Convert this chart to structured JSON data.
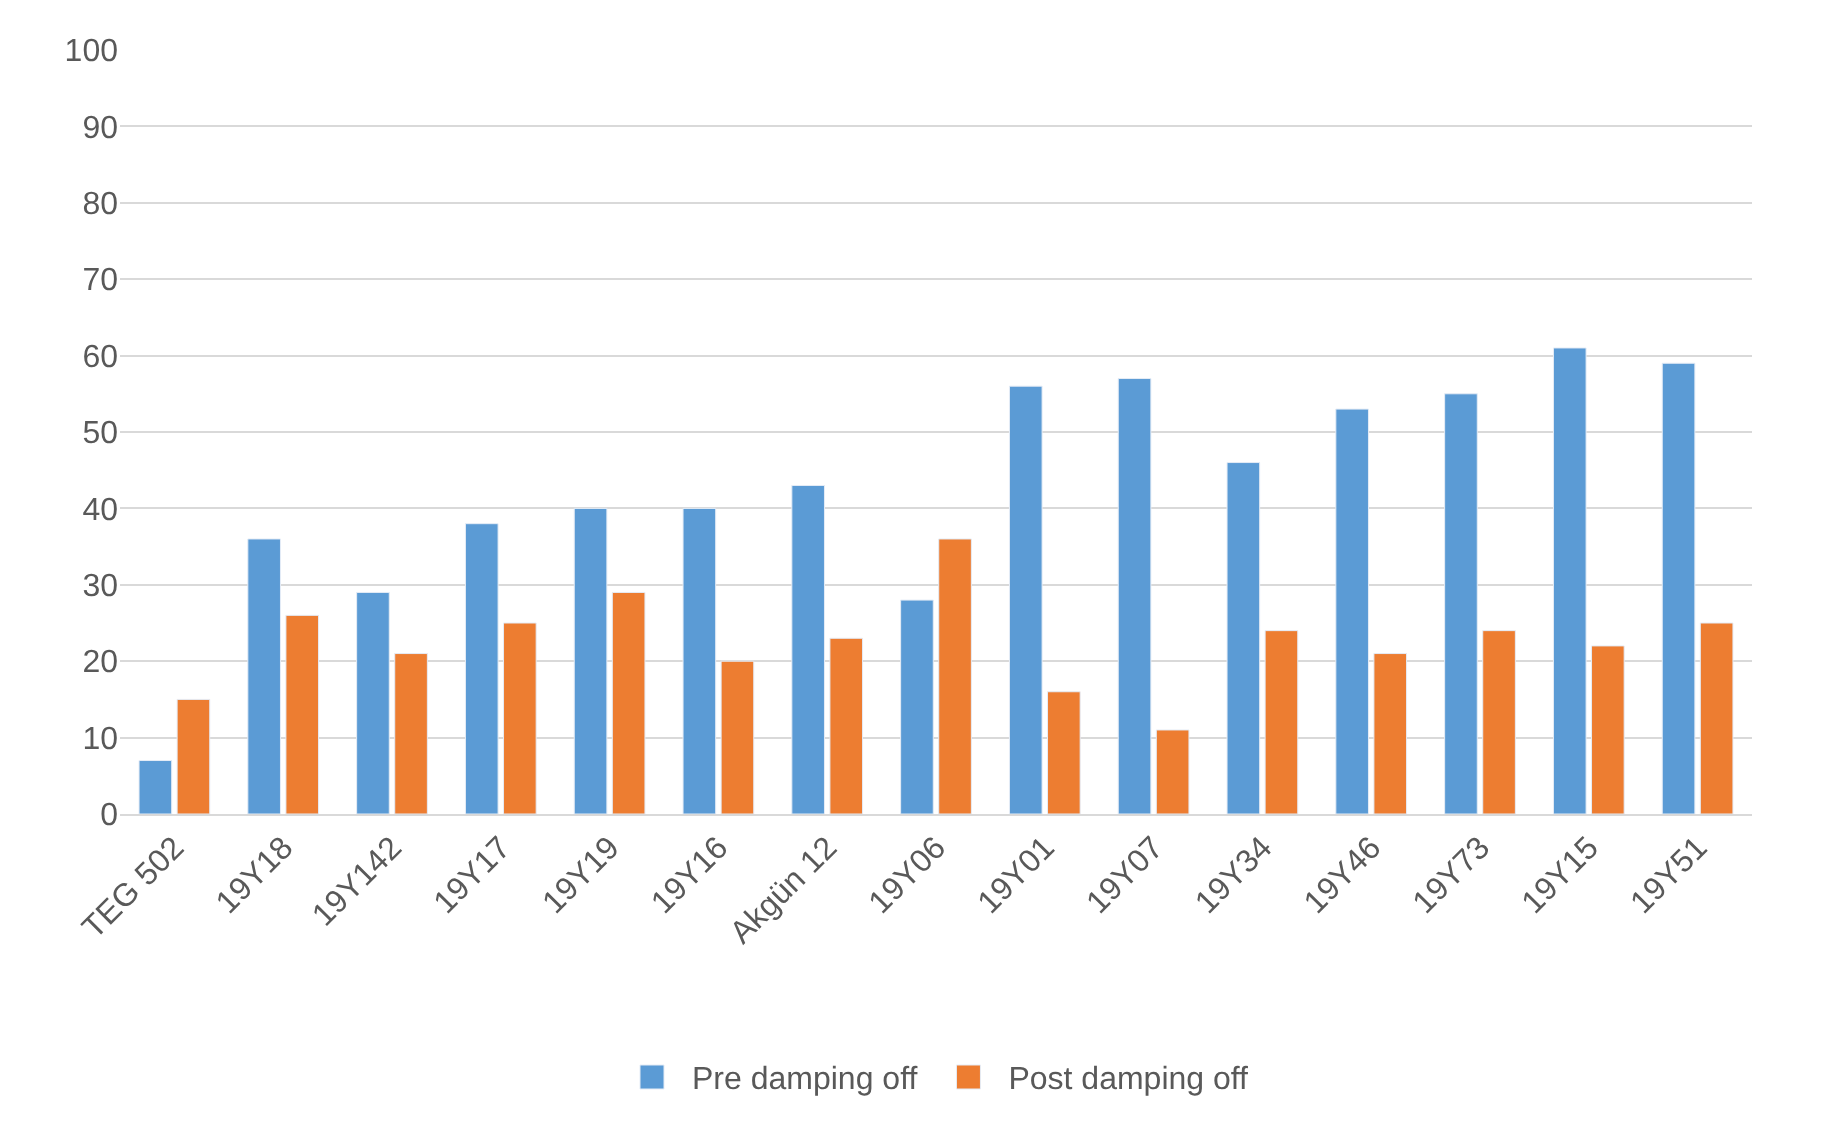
{
  "chart_data": {
    "type": "bar",
    "categories": [
      "TEG 502",
      "19Y18",
      "19Y142",
      "19Y17",
      "19Y19",
      "19Y16",
      "Akgün 12",
      "19Y06",
      "19Y01",
      "19Y07",
      "19Y34",
      "19Y46",
      "19Y73",
      "19Y15",
      "19Y51"
    ],
    "series": [
      {
        "name": "Pre damping off",
        "color": "#5b9bd5",
        "values": [
          7,
          36,
          29,
          38,
          40,
          40,
          43,
          28,
          56,
          57,
          46,
          53,
          55,
          61,
          59
        ]
      },
      {
        "name": "Post damping off",
        "color": "#ed7d31",
        "values": [
          15,
          26,
          21,
          25,
          29,
          20,
          23,
          36,
          16,
          11,
          24,
          21,
          24,
          22,
          25
        ]
      }
    ],
    "ylim": [
      0,
      100
    ],
    "yticks": [
      0,
      10,
      20,
      30,
      40,
      50,
      60,
      70,
      80,
      90,
      100
    ],
    "grid": "y",
    "legend": "bottom"
  }
}
